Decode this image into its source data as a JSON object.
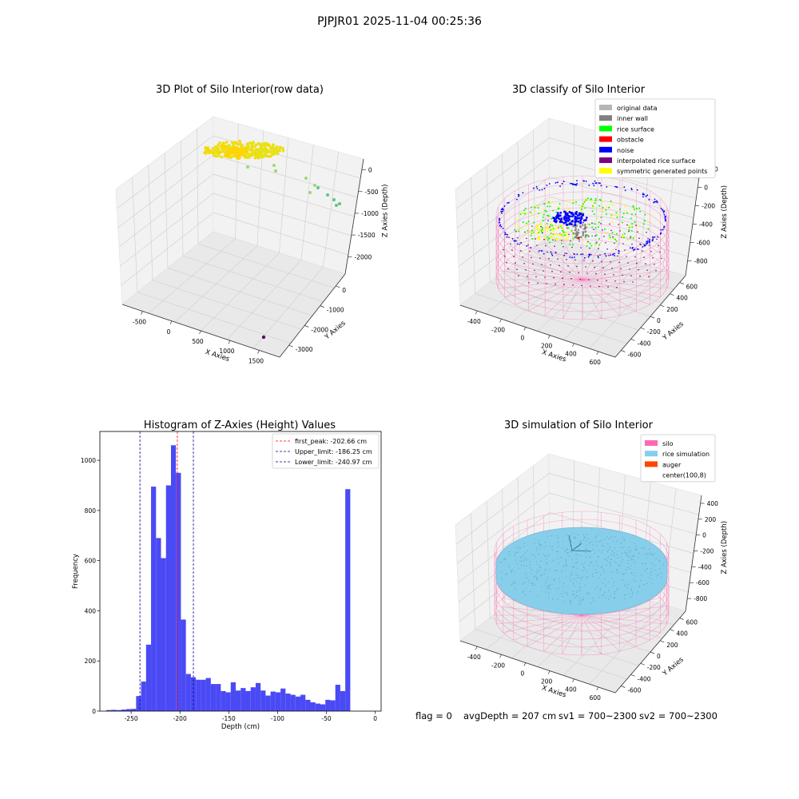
{
  "suptitle": "PJPJR01 2025-11-04 00:25:36",
  "status": {
    "flag": "flag = 0",
    "avgDepth": "avgDepth = 207 cm",
    "sv1": "sv1 = 700~2300",
    "sv2": "sv2 = 700~2300"
  },
  "colors": {
    "raw_yellow": "#e6e21a",
    "raw_gold": "#ffd400",
    "raw_green": "#9ed96b",
    "raw_teal": "#5cc58a",
    "raw_purple": "#4b1060",
    "original": "#b5b5b5",
    "inner_wall": "#808080",
    "rice_surface": "#00ff00",
    "obstacle": "#ff0000",
    "noise": "#0000ff",
    "interpolated": "#800080",
    "symmetric": "#ffff00",
    "silo_pink": "#ff69b4",
    "rice_sim": "#87ceeb",
    "auger": "#ff4500",
    "hist_bar": "#4a4af5",
    "peak_line": "#ff0000",
    "limit_line": "#00008b"
  },
  "chart_data": [
    {
      "type": "scatter",
      "projection": "3d",
      "title": "3D Plot of Silo Interior(row data)",
      "xlabel": "X Axies",
      "ylabel": "Y Axies",
      "zlabel": "Z Axies (Depth)",
      "xticks": [
        "-500",
        "0",
        "500",
        "1000",
        "1500"
      ],
      "yticks": [
        "0",
        "-1000",
        "-2000",
        "-3000"
      ],
      "zticks": [
        "0",
        "-500",
        "-1000",
        "-1500",
        "-2000"
      ],
      "grid": true
    },
    {
      "type": "scatter",
      "projection": "3d",
      "title": "3D classify of Silo Interior",
      "xlabel": "X Axies",
      "ylabel": "Y Axies",
      "zlabel": "Z Axies (Depth)",
      "xticks": [
        "-400",
        "-200",
        "0",
        "200",
        "400",
        "600"
      ],
      "yticks": [
        "600",
        "400",
        "200",
        "0",
        "-200",
        "-400",
        "-600"
      ],
      "zticks": [
        "200",
        "0",
        "-200",
        "-400",
        "-600",
        "-800"
      ],
      "legend_position": "top-right",
      "legend": [
        {
          "label": "original data",
          "color": "#b5b5b5"
        },
        {
          "label": "inner wall",
          "color": "#808080"
        },
        {
          "label": "rice surface",
          "color": "#00ff00"
        },
        {
          "label": "obstacle",
          "color": "#ff0000"
        },
        {
          "label": "noise",
          "color": "#0000ff"
        },
        {
          "label": "interpolated rice surface",
          "color": "#800080"
        },
        {
          "label": "symmetric generated points",
          "color": "#ffff00"
        }
      ],
      "grid": true
    },
    {
      "type": "bar",
      "title": "Histogram of Z-Axies (Height) Values",
      "xlabel": "Depth (cm)",
      "ylabel": "Frequency",
      "xlim": [
        -282,
        6
      ],
      "ylim": [
        0,
        1115
      ],
      "xticks": [
        -250,
        -200,
        -150,
        -100,
        -50,
        0
      ],
      "yticks": [
        0,
        200,
        400,
        600,
        800,
        1000
      ],
      "bin_width": 5.1,
      "bin_start": -275.5,
      "values": [
        4,
        5,
        4,
        6,
        8,
        9,
        60,
        118,
        265,
        895,
        690,
        610,
        900,
        1060,
        950,
        365,
        148,
        135,
        125,
        125,
        132,
        108,
        108,
        80,
        75,
        115,
        82,
        92,
        80,
        95,
        112,
        82,
        62,
        78,
        75,
        90,
        70,
        65,
        58,
        65,
        45,
        35,
        30,
        27,
        45,
        43,
        105,
        80,
        885
      ],
      "vlines": [
        {
          "label": "first_peak: -202.66 cm",
          "x": -202.66,
          "color": "#ff0000"
        },
        {
          "label": "Upper_limit: -186.25 cm",
          "x": -186.25,
          "color": "#00008b"
        },
        {
          "label": "Lower_limit: -240.97 cm",
          "x": -240.97,
          "color": "#00008b"
        }
      ],
      "legend_position": "top-right",
      "grid": false
    },
    {
      "type": "scatter",
      "projection": "3d",
      "title": "3D simulation of Silo Interior",
      "xlabel": "X Axies",
      "ylabel": "Y Axies",
      "zlabel": "Z Axies (Depth)",
      "xticks": [
        "-400",
        "-200",
        "0",
        "200",
        "400",
        "600"
      ],
      "yticks": [
        "600",
        "400",
        "200",
        "0",
        "-200",
        "-400",
        "-600"
      ],
      "zticks": [
        "400",
        "200",
        "0",
        "-200",
        "-400",
        "-600",
        "-800"
      ],
      "legend_position": "top-right",
      "legend": [
        {
          "label": "silo",
          "color": "#ff69b4"
        },
        {
          "label": "rice simulation",
          "color": "#87ceeb"
        },
        {
          "label": "auger",
          "color": "#ff4500"
        },
        {
          "label": "center(100,8)",
          "color": ""
        }
      ],
      "grid": true
    }
  ]
}
